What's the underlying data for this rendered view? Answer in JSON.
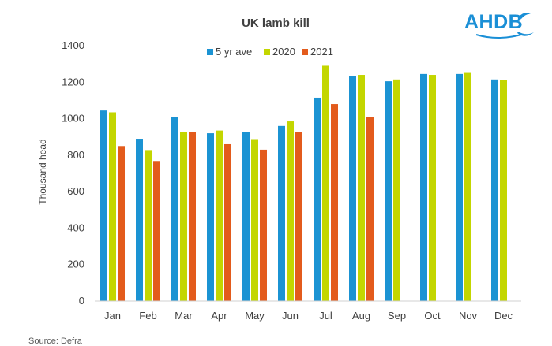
{
  "chart_data": {
    "type": "bar",
    "title": "UK lamb kill",
    "ylabel": "Thousand  head",
    "xlabel": "",
    "ylim": [
      0,
      1400
    ],
    "yticks": [
      0,
      200,
      400,
      600,
      800,
      1000,
      1200,
      1400
    ],
    "categories": [
      "Jan",
      "Feb",
      "Mar",
      "Apr",
      "May",
      "Jun",
      "Jul",
      "Aug",
      "Sep",
      "Oct",
      "Nov",
      "Dec"
    ],
    "series": [
      {
        "name": "5 yr ave",
        "color": "#1b93d3",
        "values": [
          1045,
          890,
          1008,
          920,
          925,
          960,
          1115,
          1235,
          1205,
          1245,
          1245,
          1215
        ]
      },
      {
        "name": "2020",
        "color": "#c3d600",
        "values": [
          1035,
          828,
          925,
          935,
          888,
          985,
          1290,
          1240,
          1215,
          1240,
          1255,
          1210
        ]
      },
      {
        "name": "2021",
        "color": "#e35b1c",
        "values": [
          850,
          768,
          925,
          860,
          830,
          925,
          1080,
          1010,
          null,
          null,
          null,
          null
        ]
      }
    ],
    "legend_position": "top-center",
    "grid": false,
    "source": "Source: Defra"
  },
  "logo": {
    "text": "AHDB",
    "icon": "ahdb-wave-logo",
    "color": "#1a8fd6"
  }
}
